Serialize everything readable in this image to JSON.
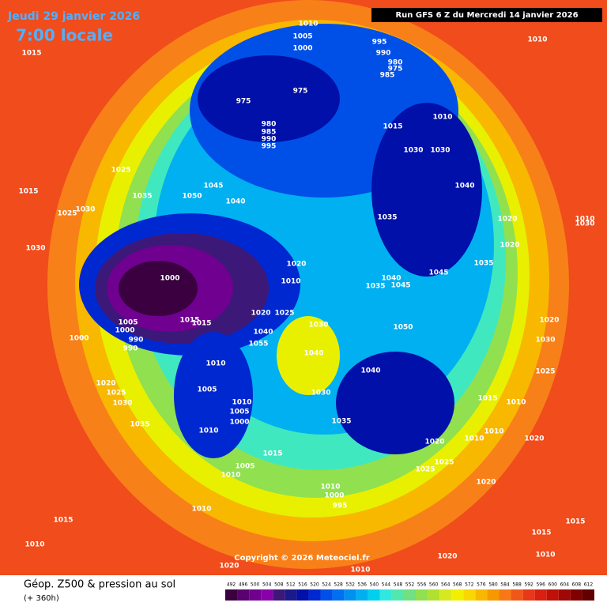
{
  "header": {
    "date": "Jeudi 29 janvier 2026",
    "time": "7:00 locale",
    "run": "Run GFS 6 Z du Mercredi 14 janvier 2026"
  },
  "footer": {
    "title": "Géop. Z500 & pression au sol",
    "lead": "(+ 360h)",
    "copyright": "Copyright © 2026 Meteociel.fr"
  },
  "pressure_labels": [
    "1010",
    "1005",
    "1000",
    "995",
    "990",
    "980",
    "975",
    "985",
    "1010",
    "1015",
    "975",
    "975",
    "980",
    "985",
    "990",
    "995",
    "1015",
    "1010",
    "1030",
    "1030",
    "1025",
    "1015",
    "1035",
    "1050",
    "1045",
    "1040",
    "1040",
    "1035",
    "1030",
    "1025",
    "1020",
    "1020",
    "1030",
    "1035",
    "1045",
    "1020",
    "1010",
    "1040",
    "1045",
    "1035",
    "1000",
    "1005",
    "1000",
    "990",
    "990",
    "1000",
    "1015",
    "1015",
    "1020",
    "1025",
    "1030",
    "1040",
    "1055",
    "1040",
    "1050",
    "1040",
    "1010",
    "1030",
    "1005",
    "1010",
    "1005",
    "1000",
    "1035",
    "1010",
    "1035",
    "1020",
    "1025",
    "1030",
    "1015",
    "1005",
    "1010",
    "1020",
    "1010",
    "1010",
    "1015",
    "1010",
    "1020",
    "1025",
    "1025",
    "1020",
    "1010",
    "1000",
    "995",
    "1010",
    "1015",
    "1010",
    "1015",
    "1015",
    "1010",
    "1020",
    "1020",
    "1010",
    "1020",
    "1030",
    "1025",
    "1030",
    "1010"
  ],
  "legend": {
    "values": [
      492,
      496,
      500,
      504,
      508,
      512,
      516,
      520,
      524,
      528,
      532,
      536,
      540,
      544,
      548,
      552,
      556,
      560,
      564,
      568,
      572,
      576,
      580,
      584,
      588,
      592,
      596,
      600,
      604,
      608,
      612
    ],
    "colors": [
      "#3a0040",
      "#5a0070",
      "#700090",
      "#8a00a8",
      "#3c1878",
      "#1a1a8a",
      "#0010a8",
      "#0028d0",
      "#0050e8",
      "#0070f0",
      "#0090f0",
      "#00b0f0",
      "#00d0f0",
      "#30e8e0",
      "#50e8b0",
      "#70e080",
      "#90e050",
      "#b0e030",
      "#d8e820",
      "#f0f000",
      "#f8d800",
      "#f8b800",
      "#f89800",
      "#f87818",
      "#f05818",
      "#e83818",
      "#d82010",
      "#c01008",
      "#a00808",
      "#800000",
      "#600000"
    ]
  }
}
